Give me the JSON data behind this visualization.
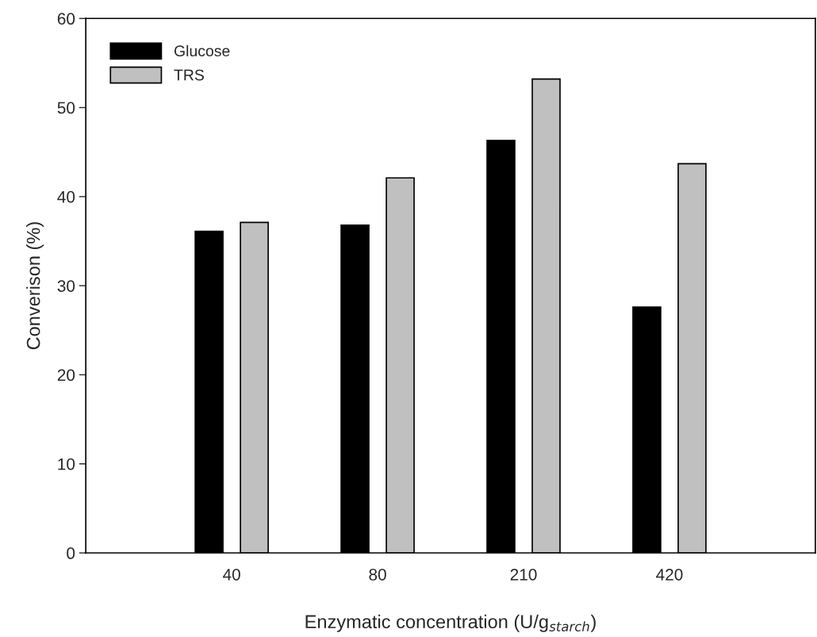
{
  "chart_data": {
    "type": "bar",
    "xlabel": "Enzymatic concentration (U/g$_{starch}$)",
    "ylabel": "Converison (%)",
    "categories": [
      "40",
      "80",
      "210",
      "420"
    ],
    "series": [
      {
        "name": "Glucose",
        "color": "#000000",
        "values": [
          36.1,
          36.8,
          46.3,
          27.6
        ]
      },
      {
        "name": "TRS",
        "color": "#c0c0c0",
        "values": [
          37.1,
          42.1,
          53.2,
          43.7
        ]
      }
    ],
    "ylim": [
      0,
      60
    ],
    "yticks": [
      0,
      10,
      20,
      30,
      40,
      50,
      60
    ],
    "grid": false,
    "legend": "top left"
  }
}
